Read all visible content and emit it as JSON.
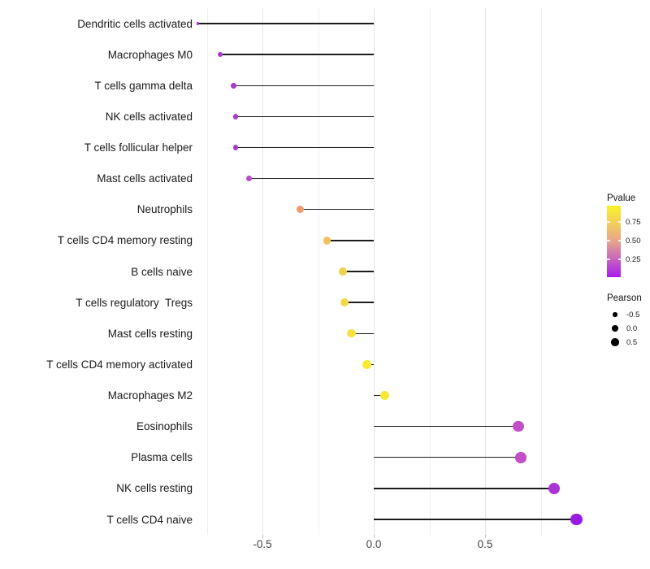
{
  "chart_data": {
    "type": "scatter",
    "subtype": "lollipop",
    "title": "",
    "xlabel": "",
    "ylabel": "",
    "xlim": [
      -0.875,
      1.0
    ],
    "grid": true,
    "x_gridlines": [
      {
        "value": -0.75,
        "kind": "minor"
      },
      {
        "value": -0.5,
        "kind": "major"
      },
      {
        "value": -0.25,
        "kind": "minor"
      },
      {
        "value": 0.0,
        "kind": "major"
      },
      {
        "value": 0.25,
        "kind": "minor"
      },
      {
        "value": 0.5,
        "kind": "major"
      },
      {
        "value": 0.75,
        "kind": "minor"
      }
    ],
    "x_axis_ticks": [
      {
        "value": -0.5,
        "label": "-0.5"
      },
      {
        "value": 0.0,
        "label": "0.0"
      },
      {
        "value": 0.5,
        "label": "0.5"
      }
    ],
    "categories": [
      "Dendritic cells activated",
      "Macrophages M0",
      "T cells gamma delta",
      "NK cells activated",
      "T cells follicular helper",
      "Mast cells activated",
      "Neutrophils",
      "T cells CD4 memory resting",
      "B cells naive",
      "T cells regulatory  Tregs",
      "Mast cells resting",
      "T cells CD4 memory activated",
      "Macrophages M2",
      "Eosinophils",
      "Plasma cells",
      "NK cells resting",
      "T cells CD4 naive"
    ],
    "points": [
      {
        "label": "Dendritic cells activated",
        "pearson": -0.79,
        "pvalue": 0.05,
        "color": "#9931CF"
      },
      {
        "label": "Macrophages M0",
        "pearson": -0.69,
        "pvalue": 0.13,
        "color": "#A83BC8"
      },
      {
        "label": "T cells gamma delta",
        "pearson": -0.63,
        "pvalue": 0.13,
        "color": "#A83BC8"
      },
      {
        "label": "NK cells activated",
        "pearson": -0.62,
        "pvalue": 0.13,
        "color": "#A93CC9"
      },
      {
        "label": "T cells follicular helper",
        "pearson": -0.62,
        "pvalue": 0.13,
        "color": "#A93CC9"
      },
      {
        "label": "Mast cells activated",
        "pearson": -0.56,
        "pvalue": 0.18,
        "color": "#B84FC8"
      },
      {
        "label": "Neutrophils",
        "pearson": -0.33,
        "pvalue": 0.58,
        "color": "#ED9C72"
      },
      {
        "label": "T cells CD4 memory resting",
        "pearson": -0.21,
        "pvalue": 0.7,
        "color": "#F2C05E"
      },
      {
        "label": "B cells naive",
        "pearson": -0.14,
        "pvalue": 0.78,
        "color": "#F0D24A"
      },
      {
        "label": "T cells regulatory  Tregs",
        "pearson": -0.13,
        "pvalue": 0.8,
        "color": "#F2DA47"
      },
      {
        "label": "Mast cells resting",
        "pearson": -0.1,
        "pvalue": 0.85,
        "color": "#F5E23F"
      },
      {
        "label": "T cells CD4 memory activated",
        "pearson": -0.03,
        "pvalue": 0.92,
        "color": "#F8EA33"
      },
      {
        "label": "Macrophages M2",
        "pearson": 0.05,
        "pvalue": 0.9,
        "color": "#F7E837"
      },
      {
        "label": "Eosinophils",
        "pearson": 0.65,
        "pvalue": 0.22,
        "color": "#C24FC6"
      },
      {
        "label": "Plasma cells",
        "pearson": 0.66,
        "pvalue": 0.22,
        "color": "#C24FC6"
      },
      {
        "label": "NK cells resting",
        "pearson": 0.81,
        "pvalue": 0.1,
        "color": "#AB33D8"
      },
      {
        "label": "T cells CD4 naive",
        "pearson": 0.91,
        "pvalue": 0.03,
        "color": "#9A1BE0"
      }
    ],
    "legend_pvalue": {
      "title": "Pvalue",
      "position": "right",
      "bar_range": [
        0.97,
        0.01
      ],
      "ticks": [
        {
          "value": 0.75,
          "label": "0.75"
        },
        {
          "value": 0.5,
          "label": "0.50"
        },
        {
          "value": 0.25,
          "label": "0.25"
        }
      ],
      "gradient_stops": [
        {
          "pos": 0.0,
          "color": "#FBF226"
        },
        {
          "pos": 0.25,
          "color": "#F3CD5F"
        },
        {
          "pos": 0.5,
          "color": "#E5A48C"
        },
        {
          "pos": 0.75,
          "color": "#C862C0"
        },
        {
          "pos": 1.0,
          "color": "#A81AEE"
        }
      ]
    },
    "legend_pearson": {
      "title": "Pearson",
      "position": "right",
      "entries": [
        {
          "value": -0.5,
          "label": "-0.5"
        },
        {
          "value": 0.0,
          "label": "0.0"
        },
        {
          "value": 0.5,
          "label": "0.5"
        }
      ]
    }
  }
}
